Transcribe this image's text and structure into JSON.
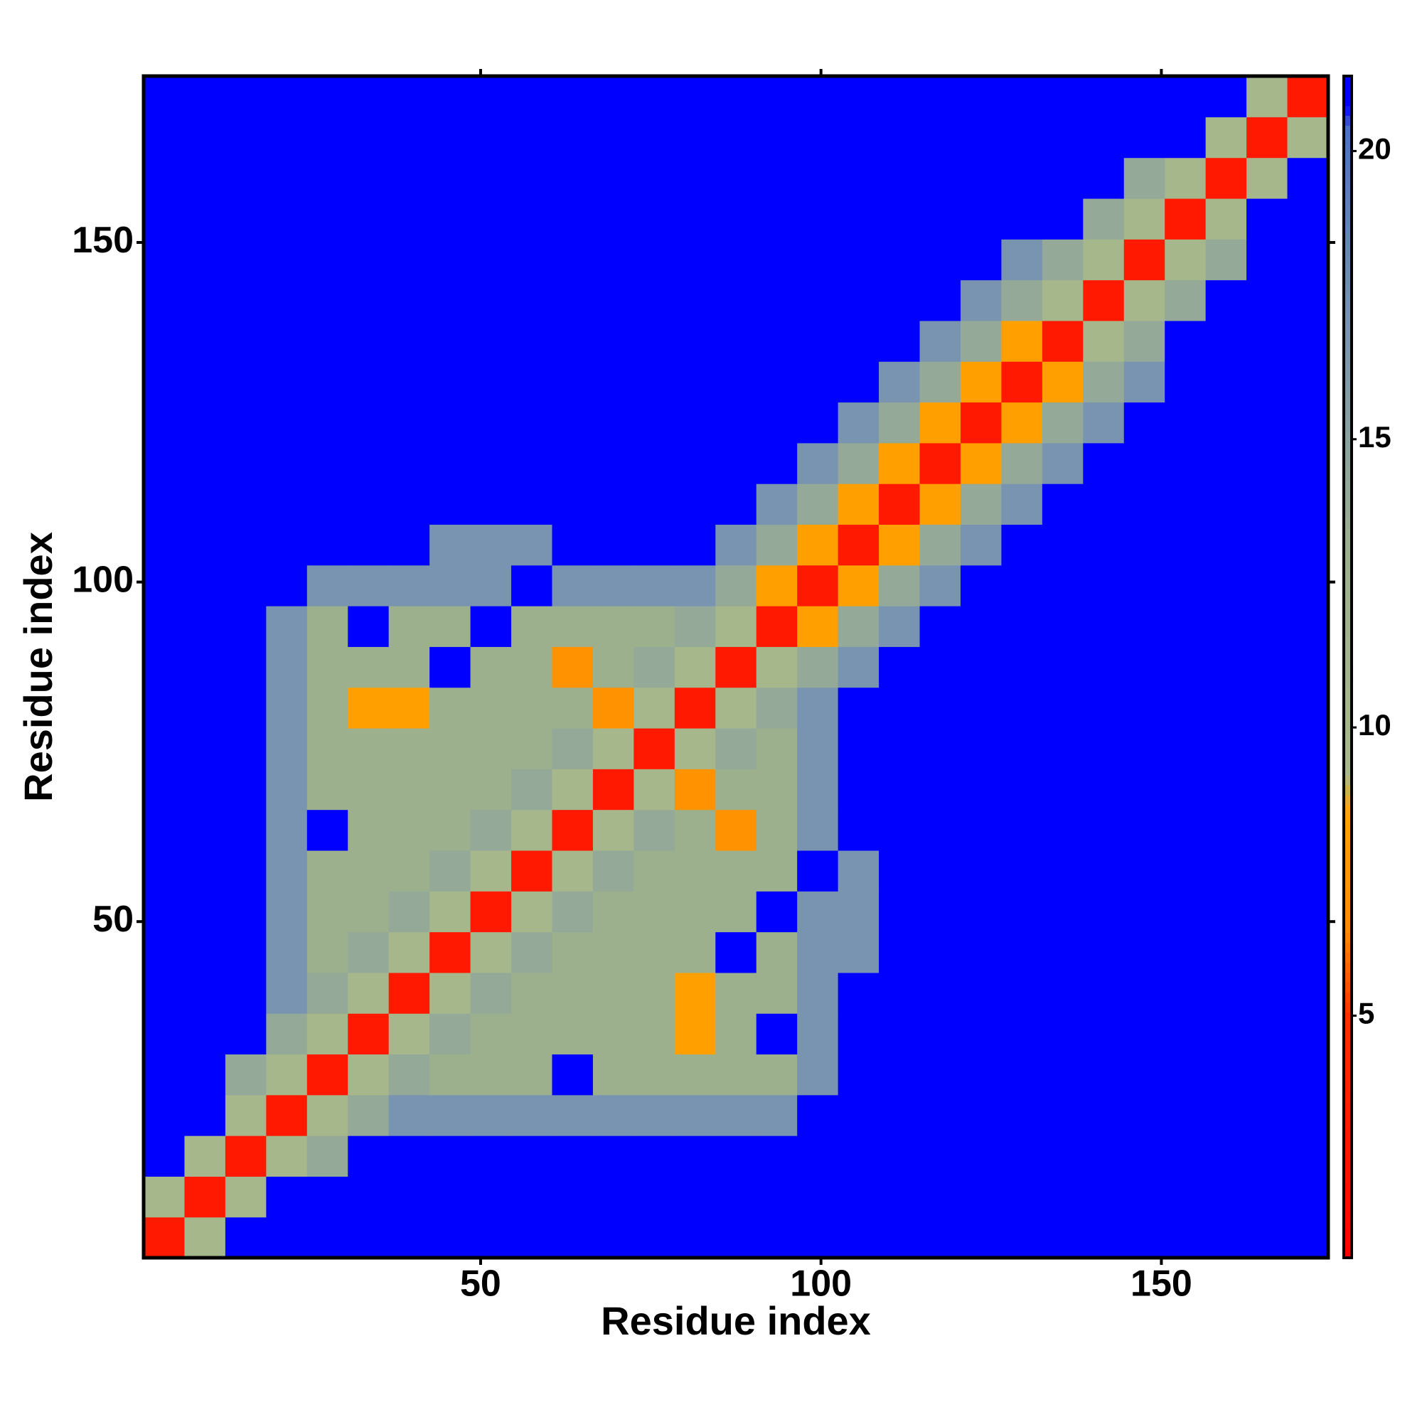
{
  "chart_data": {
    "type": "heatmap",
    "xlabel": "Residue index",
    "ylabel": "Residue index",
    "xlim": [
      0.5,
      174.5
    ],
    "ylim": [
      0.5,
      174.5
    ],
    "xticks": [
      50,
      100,
      150
    ],
    "yticks": [
      50,
      100,
      150
    ],
    "zlim": [
      0.8,
      21.3
    ],
    "zticks": [
      5,
      10,
      15,
      20
    ],
    "colorscale": [
      [
        0.8,
        "#ff0000"
      ],
      [
        5,
        "#ff3000"
      ],
      [
        6.5,
        "#ff8c00"
      ],
      [
        8.5,
        "#ffa500"
      ],
      [
        9.2,
        "#a9b98c"
      ],
      [
        13,
        "#9db08e"
      ],
      [
        17,
        "#7894b0"
      ],
      [
        20.4,
        "#4a74c0"
      ],
      [
        20.8,
        "#0000ff"
      ],
      [
        21.3,
        "#0000ff"
      ]
    ],
    "x": [
      3.5,
      9.5,
      15.5,
      21.5,
      27.5,
      33.5,
      39.5,
      45.5,
      51.5,
      57.5,
      63.5,
      69.5,
      75.5,
      81.5,
      87.5,
      93.5,
      99.5,
      105.5,
      111.5,
      117.5,
      123.5,
      129.5,
      135.5,
      141.5,
      147.5,
      153.5,
      159.5,
      165.5,
      171.5
    ],
    "y": [
      3.5,
      9.5,
      15.5,
      21.5,
      27.5,
      33.5,
      39.5,
      45.5,
      51.5,
      57.5,
      63.5,
      69.5,
      75.5,
      81.5,
      87.5,
      93.5,
      99.5,
      105.5,
      111.5,
      117.5,
      123.5,
      129.5,
      135.5,
      141.5,
      147.5,
      153.5,
      159.5,
      165.5,
      171.5
    ],
    "z": [
      [
        3,
        10,
        21,
        21,
        21,
        21,
        21,
        21,
        21,
        21,
        21,
        21,
        21,
        21,
        21,
        21,
        21,
        21,
        21,
        21,
        21,
        21,
        21,
        21,
        21,
        21,
        21,
        21,
        21
      ],
      [
        10,
        3,
        10,
        21,
        21,
        21,
        21,
        21,
        21,
        21,
        21,
        21,
        21,
        21,
        21,
        21,
        21,
        21,
        21,
        21,
        21,
        21,
        21,
        21,
        21,
        21,
        21,
        21,
        21
      ],
      [
        21,
        10,
        3,
        10,
        14,
        21,
        21,
        21,
        21,
        21,
        21,
        21,
        21,
        21,
        21,
        21,
        21,
        21,
        21,
        21,
        21,
        21,
        21,
        21,
        21,
        21,
        21,
        21,
        21
      ],
      [
        21,
        21,
        10,
        3,
        10,
        14,
        17,
        17,
        17,
        17,
        17,
        17,
        17,
        17,
        17,
        17,
        21,
        21,
        21,
        21,
        21,
        21,
        21,
        21,
        21,
        21,
        21,
        21,
        21
      ],
      [
        21,
        21,
        14,
        10,
        3,
        10,
        14,
        13,
        13,
        13,
        21,
        13,
        13,
        13,
        13,
        13,
        17,
        21,
        21,
        21,
        21,
        21,
        21,
        21,
        21,
        21,
        21,
        21,
        21
      ],
      [
        21,
        21,
        21,
        14,
        10,
        3,
        10,
        14,
        13,
        13,
        13,
        13,
        13,
        8,
        13,
        21,
        17,
        21,
        21,
        21,
        21,
        21,
        21,
        21,
        21,
        21,
        21,
        21,
        21
      ],
      [
        21,
        21,
        21,
        17,
        14,
        10,
        3,
        10,
        14,
        13,
        13,
        13,
        13,
        8,
        13,
        13,
        17,
        21,
        21,
        21,
        21,
        21,
        21,
        21,
        21,
        21,
        21,
        21,
        21
      ],
      [
        21,
        21,
        21,
        17,
        13,
        14,
        10,
        3,
        10,
        14,
        13,
        13,
        13,
        13,
        21,
        13,
        17,
        17,
        21,
        21,
        21,
        21,
        21,
        21,
        21,
        21,
        21,
        21,
        21
      ],
      [
        21,
        21,
        21,
        17,
        13,
        13,
        14,
        10,
        3,
        10,
        14,
        13,
        13,
        13,
        13,
        21,
        17,
        17,
        21,
        21,
        21,
        21,
        21,
        21,
        21,
        21,
        21,
        21,
        21
      ],
      [
        21,
        21,
        21,
        17,
        13,
        13,
        13,
        14,
        10,
        3,
        10,
        14,
        13,
        13,
        13,
        13,
        21,
        17,
        21,
        21,
        21,
        21,
        21,
        21,
        21,
        21,
        21,
        21,
        21
      ],
      [
        21,
        21,
        21,
        17,
        21,
        13,
        13,
        13,
        14,
        10,
        3,
        10,
        14,
        13,
        7,
        13,
        17,
        21,
        21,
        21,
        21,
        21,
        21,
        21,
        21,
        21,
        21,
        21,
        21
      ],
      [
        21,
        21,
        21,
        17,
        13,
        13,
        13,
        13,
        13,
        14,
        10,
        3,
        10,
        7,
        13,
        13,
        17,
        21,
        21,
        21,
        21,
        21,
        21,
        21,
        21,
        21,
        21,
        21,
        21
      ],
      [
        21,
        21,
        21,
        17,
        13,
        13,
        13,
        13,
        13,
        13,
        14,
        10,
        3,
        10,
        14,
        13,
        17,
        21,
        21,
        21,
        21,
        21,
        21,
        21,
        21,
        21,
        21,
        21,
        21
      ],
      [
        21,
        21,
        21,
        17,
        13,
        8,
        8,
        13,
        13,
        13,
        13,
        7,
        10,
        3,
        10,
        14,
        17,
        21,
        21,
        21,
        21,
        21,
        21,
        21,
        21,
        21,
        21,
        21,
        21
      ],
      [
        21,
        21,
        21,
        17,
        13,
        13,
        13,
        21,
        13,
        13,
        7,
        13,
        14,
        10,
        3,
        10,
        14,
        17,
        21,
        21,
        21,
        21,
        21,
        21,
        21,
        21,
        21,
        21,
        21
      ],
      [
        21,
        21,
        21,
        17,
        13,
        21,
        13,
        13,
        21,
        13,
        13,
        13,
        13,
        14,
        10,
        3,
        8,
        14,
        17,
        21,
        21,
        21,
        21,
        21,
        21,
        21,
        21,
        21,
        21
      ],
      [
        21,
        21,
        21,
        21,
        17,
        17,
        17,
        17,
        17,
        21,
        17,
        17,
        17,
        17,
        14,
        8,
        3,
        8,
        14,
        17,
        21,
        21,
        21,
        21,
        21,
        21,
        21,
        21,
        21
      ],
      [
        21,
        21,
        21,
        21,
        21,
        21,
        21,
        17,
        17,
        17,
        21,
        21,
        21,
        21,
        17,
        14,
        8,
        3,
        8,
        14,
        17,
        21,
        21,
        21,
        21,
        21,
        21,
        21,
        21
      ],
      [
        21,
        21,
        21,
        21,
        21,
        21,
        21,
        21,
        21,
        21,
        21,
        21,
        21,
        21,
        21,
        17,
        14,
        8,
        3,
        8,
        14,
        17,
        21,
        21,
        21,
        21,
        21,
        21,
        21
      ],
      [
        21,
        21,
        21,
        21,
        21,
        21,
        21,
        21,
        21,
        21,
        21,
        21,
        21,
        21,
        21,
        21,
        17,
        14,
        8,
        3,
        8,
        14,
        17,
        21,
        21,
        21,
        21,
        21,
        21
      ],
      [
        21,
        21,
        21,
        21,
        21,
        21,
        21,
        21,
        21,
        21,
        21,
        21,
        21,
        21,
        21,
        21,
        21,
        17,
        14,
        8,
        3,
        8,
        14,
        17,
        21,
        21,
        21,
        21,
        21
      ],
      [
        21,
        21,
        21,
        21,
        21,
        21,
        21,
        21,
        21,
        21,
        21,
        21,
        21,
        21,
        21,
        21,
        21,
        21,
        17,
        14,
        8,
        3,
        8,
        14,
        17,
        21,
        21,
        21,
        21
      ],
      [
        21,
        21,
        21,
        21,
        21,
        21,
        21,
        21,
        21,
        21,
        21,
        21,
        21,
        21,
        21,
        21,
        21,
        21,
        21,
        17,
        14,
        8,
        3,
        10,
        14,
        21,
        21,
        21,
        21
      ],
      [
        21,
        21,
        21,
        21,
        21,
        21,
        21,
        21,
        21,
        21,
        21,
        21,
        21,
        21,
        21,
        21,
        21,
        21,
        21,
        21,
        17,
        14,
        10,
        3,
        10,
        14,
        21,
        21,
        21
      ],
      [
        21,
        21,
        21,
        21,
        21,
        21,
        21,
        21,
        21,
        21,
        21,
        21,
        21,
        21,
        21,
        21,
        21,
        21,
        21,
        21,
        21,
        17,
        14,
        10,
        3,
        10,
        14,
        21,
        21
      ],
      [
        21,
        21,
        21,
        21,
        21,
        21,
        21,
        21,
        21,
        21,
        21,
        21,
        21,
        21,
        21,
        21,
        21,
        21,
        21,
        21,
        21,
        21,
        21,
        14,
        10,
        3,
        10,
        21,
        21
      ],
      [
        21,
        21,
        21,
        21,
        21,
        21,
        21,
        21,
        21,
        21,
        21,
        21,
        21,
        21,
        21,
        21,
        21,
        21,
        21,
        21,
        21,
        21,
        21,
        21,
        14,
        10,
        3,
        10,
        21
      ],
      [
        21,
        21,
        21,
        21,
        21,
        21,
        21,
        21,
        21,
        21,
        21,
        21,
        21,
        21,
        21,
        21,
        21,
        21,
        21,
        21,
        21,
        21,
        21,
        21,
        21,
        21,
        10,
        3,
        10
      ],
      [
        21,
        21,
        21,
        21,
        21,
        21,
        21,
        21,
        21,
        21,
        21,
        21,
        21,
        21,
        21,
        21,
        21,
        21,
        21,
        21,
        21,
        21,
        21,
        21,
        21,
        21,
        21,
        10,
        3
      ]
    ]
  }
}
